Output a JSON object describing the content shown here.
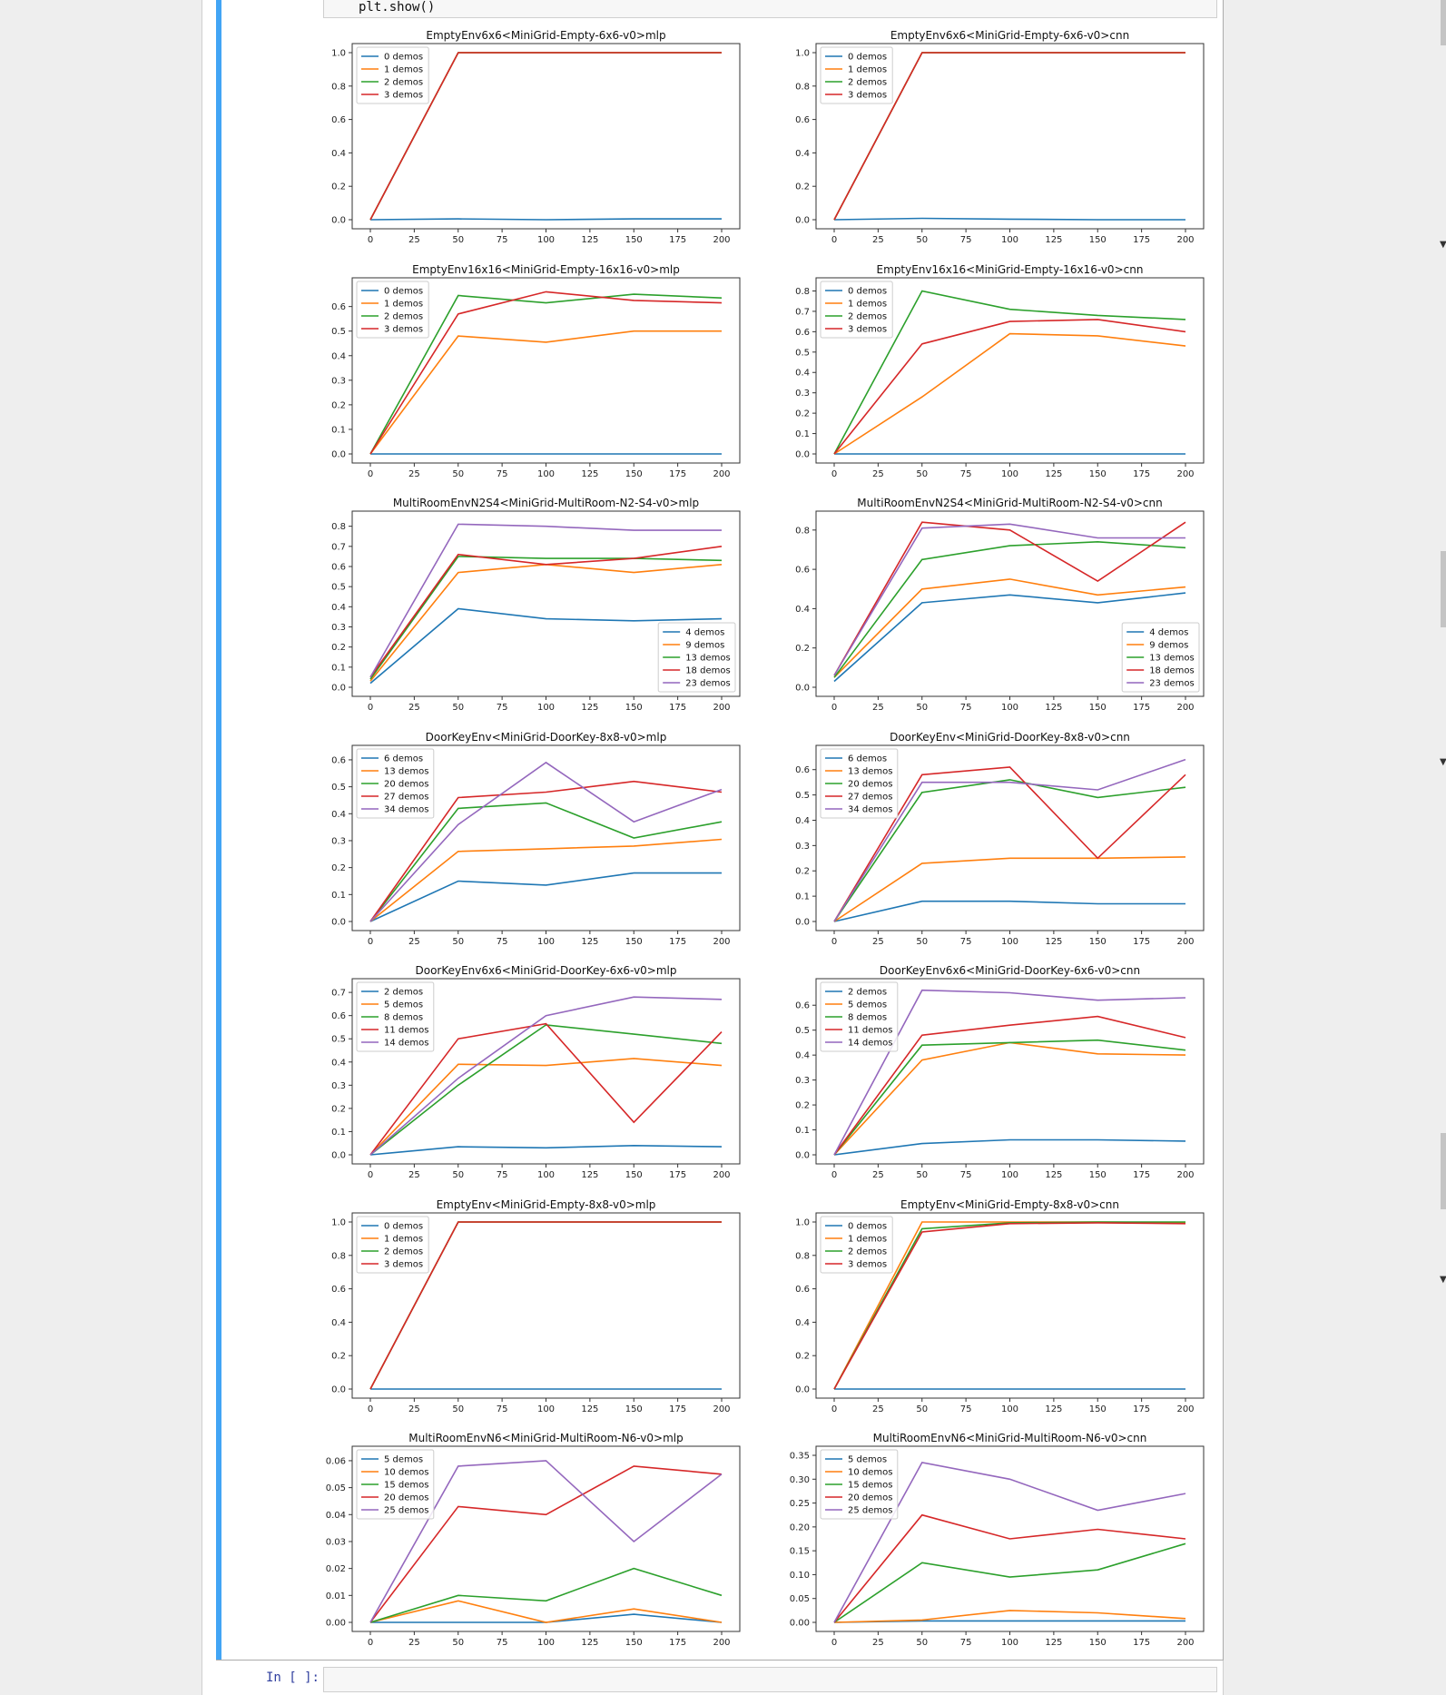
{
  "code": {
    "last_line": "plt.show()"
  },
  "next_cell": {
    "prompt": "In [ ]:",
    "value": ""
  },
  "colors": [
    "#1f77b4",
    "#ff7f0e",
    "#2ca02c",
    "#d62728",
    "#9467bd"
  ],
  "icons": {
    "scroll_markers": "triangle-down-icon"
  },
  "chart_data": [
    {
      "type": "line",
      "title": "EmptyEnv6x6<MiniGrid-Empty-6x6-v0>mlp",
      "x": [
        0,
        50,
        100,
        150,
        200
      ],
      "xticks": [
        0,
        25,
        50,
        75,
        100,
        125,
        150,
        175,
        200
      ],
      "ylim": [
        0,
        1.0
      ],
      "yticks": [
        "0.0",
        "0.2",
        "0.4",
        "0.6",
        "0.8",
        "1.0"
      ],
      "legend_loc": "upper-left",
      "series": [
        {
          "name": "0 demos",
          "values": [
            0.0,
            0.005,
            0.0,
            0.005,
            0.005
          ]
        },
        {
          "name": "1 demos",
          "values": [
            0.0,
            1.0,
            1.0,
            1.0,
            1.0
          ]
        },
        {
          "name": "2 demos",
          "values": [
            0.0,
            1.0,
            1.0,
            1.0,
            1.0
          ]
        },
        {
          "name": "3 demos",
          "values": [
            0.0,
            1.0,
            1.0,
            1.0,
            1.0
          ]
        }
      ]
    },
    {
      "type": "line",
      "title": "EmptyEnv6x6<MiniGrid-Empty-6x6-v0>cnn",
      "x": [
        0,
        50,
        100,
        150,
        200
      ],
      "xticks": [
        0,
        25,
        50,
        75,
        100,
        125,
        150,
        175,
        200
      ],
      "ylim": [
        0,
        1.0
      ],
      "yticks": [
        "0.0",
        "0.2",
        "0.4",
        "0.6",
        "0.8",
        "1.0"
      ],
      "legend_loc": "upper-left",
      "series": [
        {
          "name": "0 demos",
          "values": [
            0.0,
            0.008,
            0.003,
            0.0,
            0.0
          ]
        },
        {
          "name": "1 demos",
          "values": [
            0.0,
            1.0,
            1.0,
            1.0,
            1.0
          ]
        },
        {
          "name": "2 demos",
          "values": [
            0.0,
            1.0,
            1.0,
            1.0,
            1.0
          ]
        },
        {
          "name": "3 demos",
          "values": [
            0.0,
            1.0,
            1.0,
            1.0,
            1.0
          ]
        }
      ]
    },
    {
      "type": "line",
      "title": "EmptyEnv16x16<MiniGrid-Empty-16x16-v0>mlp",
      "x": [
        0,
        50,
        100,
        150,
        200
      ],
      "xticks": [
        0,
        25,
        50,
        75,
        100,
        125,
        150,
        175,
        200
      ],
      "ylim": [
        0,
        0.68
      ],
      "yticks": [
        "0.0",
        "0.1",
        "0.2",
        "0.3",
        "0.4",
        "0.5",
        "0.6"
      ],
      "legend_loc": "upper-left",
      "series": [
        {
          "name": "0 demos",
          "values": [
            0.0,
            0.0,
            0.0,
            0.0,
            0.0
          ]
        },
        {
          "name": "1 demos",
          "values": [
            0.0,
            0.48,
            0.455,
            0.5,
            0.5
          ]
        },
        {
          "name": "2 demos",
          "values": [
            0.0,
            0.645,
            0.615,
            0.65,
            0.635
          ]
        },
        {
          "name": "3 demos",
          "values": [
            0.0,
            0.57,
            0.66,
            0.625,
            0.615
          ]
        }
      ]
    },
    {
      "type": "line",
      "title": "EmptyEnv16x16<MiniGrid-Empty-16x16-v0>cnn",
      "x": [
        0,
        50,
        100,
        150,
        200
      ],
      "xticks": [
        0,
        25,
        50,
        75,
        100,
        125,
        150,
        175,
        200
      ],
      "ylim": [
        0,
        0.82
      ],
      "yticks": [
        "0.0",
        "0.1",
        "0.2",
        "0.3",
        "0.4",
        "0.5",
        "0.6",
        "0.7",
        "0.8"
      ],
      "legend_loc": "upper-left",
      "series": [
        {
          "name": "0 demos",
          "values": [
            0.0,
            0.0,
            0.0,
            0.0,
            0.0
          ]
        },
        {
          "name": "1 demos",
          "values": [
            0.0,
            0.28,
            0.59,
            0.58,
            0.53
          ]
        },
        {
          "name": "2 demos",
          "values": [
            0.0,
            0.8,
            0.71,
            0.68,
            0.66
          ]
        },
        {
          "name": "3 demos",
          "values": [
            0.0,
            0.54,
            0.65,
            0.66,
            0.6
          ]
        }
      ]
    },
    {
      "type": "line",
      "title": "MultiRoomEnvN2S4<MiniGrid-MultiRoom-N2-S4-v0>mlp",
      "x": [
        0,
        50,
        100,
        150,
        200
      ],
      "xticks": [
        0,
        25,
        50,
        75,
        100,
        125,
        150,
        175,
        200
      ],
      "ylim": [
        0,
        0.83
      ],
      "yticks": [
        "0.0",
        "0.1",
        "0.2",
        "0.3",
        "0.4",
        "0.5",
        "0.6",
        "0.7",
        "0.8"
      ],
      "legend_loc": "lower-right",
      "series": [
        {
          "name": "4 demos",
          "values": [
            0.02,
            0.39,
            0.34,
            0.33,
            0.34
          ]
        },
        {
          "name": "9 demos",
          "values": [
            0.03,
            0.57,
            0.61,
            0.57,
            0.61
          ]
        },
        {
          "name": "13 demos",
          "values": [
            0.04,
            0.65,
            0.64,
            0.64,
            0.63
          ]
        },
        {
          "name": "18 demos",
          "values": [
            0.05,
            0.66,
            0.61,
            0.64,
            0.7
          ]
        },
        {
          "name": "23 demos",
          "values": [
            0.05,
            0.81,
            0.8,
            0.78,
            0.78
          ]
        }
      ]
    },
    {
      "type": "line",
      "title": "MultiRoomEnvN2S4<MiniGrid-MultiRoom-N2-S4-v0>cnn",
      "x": [
        0,
        50,
        100,
        150,
        200
      ],
      "xticks": [
        0,
        25,
        50,
        75,
        100,
        125,
        150,
        175,
        200
      ],
      "ylim": [
        0,
        0.85
      ],
      "yticks": [
        "0.0",
        "0.2",
        "0.4",
        "0.6",
        "0.8"
      ],
      "legend_loc": "lower-right",
      "series": [
        {
          "name": "4 demos",
          "values": [
            0.03,
            0.43,
            0.47,
            0.43,
            0.48
          ]
        },
        {
          "name": "9 demos",
          "values": [
            0.05,
            0.5,
            0.55,
            0.47,
            0.51
          ]
        },
        {
          "name": "13 demos",
          "values": [
            0.05,
            0.65,
            0.72,
            0.74,
            0.71
          ]
        },
        {
          "name": "18 demos",
          "values": [
            0.06,
            0.84,
            0.8,
            0.54,
            0.84
          ]
        },
        {
          "name": "23 demos",
          "values": [
            0.06,
            0.81,
            0.83,
            0.76,
            0.76
          ]
        }
      ]
    },
    {
      "type": "line",
      "title": "DoorKeyEnv<MiniGrid-DoorKey-8x8-v0>mlp",
      "x": [
        0,
        50,
        100,
        150,
        200
      ],
      "xticks": [
        0,
        25,
        50,
        75,
        100,
        125,
        150,
        175,
        200
      ],
      "ylim": [
        0,
        0.62
      ],
      "yticks": [
        "0.0",
        "0.1",
        "0.2",
        "0.3",
        "0.4",
        "0.5",
        "0.6"
      ],
      "legend_loc": "upper-left",
      "series": [
        {
          "name": "6 demos",
          "values": [
            0.0,
            0.15,
            0.135,
            0.18,
            0.18
          ]
        },
        {
          "name": "13 demos",
          "values": [
            0.0,
            0.26,
            0.27,
            0.28,
            0.305
          ]
        },
        {
          "name": "20 demos",
          "values": [
            0.0,
            0.42,
            0.44,
            0.31,
            0.37
          ]
        },
        {
          "name": "27 demos",
          "values": [
            0.0,
            0.46,
            0.48,
            0.52,
            0.48
          ]
        },
        {
          "name": "34 demos",
          "values": [
            0.0,
            0.36,
            0.59,
            0.37,
            0.49
          ]
        }
      ]
    },
    {
      "type": "line",
      "title": "DoorKeyEnv<MiniGrid-DoorKey-8x8-v0>cnn",
      "x": [
        0,
        50,
        100,
        150,
        200
      ],
      "xticks": [
        0,
        25,
        50,
        75,
        100,
        125,
        150,
        175,
        200
      ],
      "ylim": [
        0,
        0.66
      ],
      "yticks": [
        "0.0",
        "0.1",
        "0.2",
        "0.3",
        "0.4",
        "0.5",
        "0.6"
      ],
      "legend_loc": "upper-left",
      "series": [
        {
          "name": "6 demos",
          "values": [
            0.0,
            0.08,
            0.08,
            0.07,
            0.07
          ]
        },
        {
          "name": "13 demos",
          "values": [
            0.0,
            0.23,
            0.25,
            0.25,
            0.255
          ]
        },
        {
          "name": "20 demos",
          "values": [
            0.0,
            0.51,
            0.56,
            0.49,
            0.53
          ]
        },
        {
          "name": "27 demos",
          "values": [
            0.0,
            0.58,
            0.61,
            0.25,
            0.58
          ]
        },
        {
          "name": "34 demos",
          "values": [
            0.0,
            0.55,
            0.55,
            0.52,
            0.64
          ]
        }
      ]
    },
    {
      "type": "line",
      "title": "DoorKeyEnv6x6<MiniGrid-DoorKey-6x6-v0>mlp",
      "x": [
        0,
        50,
        100,
        150,
        200
      ],
      "xticks": [
        0,
        25,
        50,
        75,
        100,
        125,
        150,
        175,
        200
      ],
      "ylim": [
        0,
        0.72
      ],
      "yticks": [
        "0.0",
        "0.1",
        "0.2",
        "0.3",
        "0.4",
        "0.5",
        "0.6",
        "0.7"
      ],
      "legend_loc": "upper-left",
      "series": [
        {
          "name": "2 demos",
          "values": [
            0.0,
            0.035,
            0.03,
            0.04,
            0.035
          ]
        },
        {
          "name": "5 demos",
          "values": [
            0.0,
            0.39,
            0.385,
            0.415,
            0.385
          ]
        },
        {
          "name": "8 demos",
          "values": [
            0.0,
            0.3,
            0.56,
            0.52,
            0.48
          ]
        },
        {
          "name": "11 demos",
          "values": [
            0.0,
            0.5,
            0.565,
            0.14,
            0.53
          ]
        },
        {
          "name": "14 demos",
          "values": [
            0.0,
            0.33,
            0.6,
            0.68,
            0.67
          ]
        }
      ]
    },
    {
      "type": "line",
      "title": "DoorKeyEnv6x6<MiniGrid-DoorKey-6x6-v0>cnn",
      "x": [
        0,
        50,
        100,
        150,
        200
      ],
      "xticks": [
        0,
        25,
        50,
        75,
        100,
        125,
        150,
        175,
        200
      ],
      "ylim": [
        0,
        0.67
      ],
      "yticks": [
        "0.0",
        "0.1",
        "0.2",
        "0.3",
        "0.4",
        "0.5",
        "0.6"
      ],
      "legend_loc": "upper-left",
      "series": [
        {
          "name": "2 demos",
          "values": [
            0.0,
            0.045,
            0.06,
            0.06,
            0.055
          ]
        },
        {
          "name": "5 demos",
          "values": [
            0.0,
            0.38,
            0.45,
            0.405,
            0.4
          ]
        },
        {
          "name": "8 demos",
          "values": [
            0.0,
            0.44,
            0.45,
            0.46,
            0.42
          ]
        },
        {
          "name": "11 demos",
          "values": [
            0.0,
            0.48,
            0.52,
            0.555,
            0.47
          ]
        },
        {
          "name": "14 demos",
          "values": [
            0.0,
            0.66,
            0.65,
            0.62,
            0.63
          ]
        }
      ]
    },
    {
      "type": "line",
      "title": "EmptyEnv<MiniGrid-Empty-8x8-v0>mlp",
      "x": [
        0,
        50,
        100,
        150,
        200
      ],
      "xticks": [
        0,
        25,
        50,
        75,
        100,
        125,
        150,
        175,
        200
      ],
      "ylim": [
        0,
        1.0
      ],
      "yticks": [
        "0.0",
        "0.2",
        "0.4",
        "0.6",
        "0.8",
        "1.0"
      ],
      "legend_loc": "upper-left",
      "series": [
        {
          "name": "0 demos",
          "values": [
            0.0,
            0.0,
            0.0,
            0.0,
            0.0
          ]
        },
        {
          "name": "1 demos",
          "values": [
            0.0,
            1.0,
            1.0,
            1.0,
            1.0
          ]
        },
        {
          "name": "2 demos",
          "values": [
            0.0,
            1.0,
            1.0,
            1.0,
            1.0
          ]
        },
        {
          "name": "3 demos",
          "values": [
            0.0,
            1.0,
            1.0,
            1.0,
            1.0
          ]
        }
      ]
    },
    {
      "type": "line",
      "title": "EmptyEnv<MiniGrid-Empty-8x8-v0>cnn",
      "x": [
        0,
        50,
        100,
        150,
        200
      ],
      "xticks": [
        0,
        25,
        50,
        75,
        100,
        125,
        150,
        175,
        200
      ],
      "ylim": [
        0,
        1.0
      ],
      "yticks": [
        "0.0",
        "0.2",
        "0.4",
        "0.6",
        "0.8",
        "1.0"
      ],
      "legend_loc": "upper-left",
      "series": [
        {
          "name": "0 demos",
          "values": [
            0.0,
            0.0,
            0.0,
            0.0,
            0.0
          ]
        },
        {
          "name": "1 demos",
          "values": [
            0.0,
            1.0,
            1.0,
            1.0,
            0.995
          ]
        },
        {
          "name": "2 demos",
          "values": [
            0.0,
            0.96,
            0.995,
            1.0,
            1.0
          ]
        },
        {
          "name": "3 demos",
          "values": [
            0.0,
            0.94,
            0.99,
            0.995,
            0.99
          ]
        }
      ]
    },
    {
      "type": "line",
      "title": "MultiRoomEnvN6<MiniGrid-MultiRoom-N6-v0>mlp",
      "x": [
        0,
        50,
        100,
        150,
        200
      ],
      "xticks": [
        0,
        25,
        50,
        75,
        100,
        125,
        150,
        175,
        200
      ],
      "ylim": [
        0,
        0.062
      ],
      "yticks": [
        "0.00",
        "0.01",
        "0.02",
        "0.03",
        "0.04",
        "0.05",
        "0.06"
      ],
      "legend_loc": "upper-left",
      "series": [
        {
          "name": "5 demos",
          "values": [
            0.0,
            0.0,
            0.0,
            0.003,
            0.0
          ]
        },
        {
          "name": "10 demos",
          "values": [
            0.0,
            0.008,
            0.0,
            0.005,
            0.0
          ]
        },
        {
          "name": "15 demos",
          "values": [
            0.0,
            0.01,
            0.008,
            0.02,
            0.01
          ]
        },
        {
          "name": "20 demos",
          "values": [
            0.0,
            0.043,
            0.04,
            0.058,
            0.055
          ]
        },
        {
          "name": "25 demos",
          "values": [
            0.0,
            0.058,
            0.06,
            0.03,
            0.055
          ]
        }
      ]
    },
    {
      "type": "line",
      "title": "MultiRoomEnvN6<MiniGrid-MultiRoom-N6-v0>cnn",
      "x": [
        0,
        50,
        100,
        150,
        200
      ],
      "xticks": [
        0,
        25,
        50,
        75,
        100,
        125,
        150,
        175,
        200
      ],
      "ylim": [
        0,
        0.35
      ],
      "yticks": [
        "0.00",
        "0.05",
        "0.10",
        "0.15",
        "0.20",
        "0.25",
        "0.30",
        "0.35"
      ],
      "legend_loc": "upper-left",
      "series": [
        {
          "name": "5 demos",
          "values": [
            0.0,
            0.003,
            0.003,
            0.003,
            0.003
          ]
        },
        {
          "name": "10 demos",
          "values": [
            0.0,
            0.005,
            0.025,
            0.02,
            0.008
          ]
        },
        {
          "name": "15 demos",
          "values": [
            0.0,
            0.125,
            0.095,
            0.11,
            0.165
          ]
        },
        {
          "name": "20 demos",
          "values": [
            0.0,
            0.225,
            0.175,
            0.195,
            0.175
          ]
        },
        {
          "name": "25 demos",
          "values": [
            0.0,
            0.335,
            0.3,
            0.235,
            0.27
          ]
        }
      ]
    }
  ]
}
